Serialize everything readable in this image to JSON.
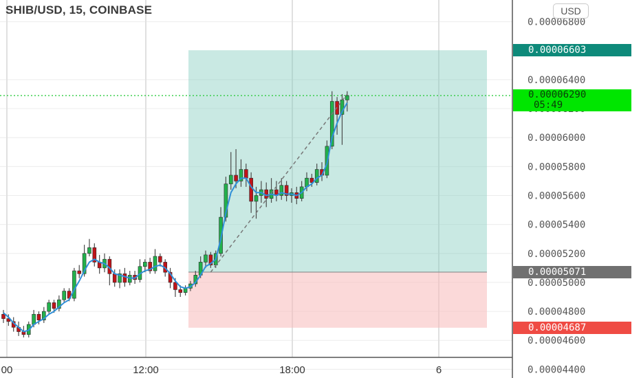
{
  "header": {
    "title": "SHIB/USD, 15, COINBASE",
    "currency_button": "USD"
  },
  "colors": {
    "profit_zone": "#7fcbbd",
    "loss_zone": "#f7b9b9",
    "candle_up": "#22b14c",
    "candle_down": "#c0141a",
    "ma_line": "#2f8fd8",
    "target_label": "#0e8a7a",
    "stop_label": "#ef4b44",
    "entry_label": "#707070",
    "last_price_label": "#00e600"
  },
  "price_labels": {
    "target": "0.00006603",
    "last": "0.00006290",
    "countdown": "05:49",
    "entry": "0.00005071",
    "stop": "0.00004687"
  },
  "chart_data": {
    "type": "candlestick",
    "title": "SHIB/USD, 15, COINBASE",
    "y_ticks": [
      "0.00006800",
      "0.00006400",
      "0.00006200",
      "0.00006000",
      "0.00005800",
      "0.00005600",
      "0.00005400",
      "0.00005200",
      "0.00005000",
      "0.00004800",
      "0.00004600",
      "0.00004400"
    ],
    "x_ticks": [
      "00",
      "12:00",
      "18:00",
      "6"
    ],
    "ylim": [
      4.34e-05,
      6.95e-05
    ],
    "position": {
      "target": 6.603e-05,
      "entry": 5.071e-05,
      "stop": 4.687e-05
    },
    "candles": [
      [
        4.78,
        4.75,
        4.81,
        4.72
      ],
      [
        4.75,
        4.73,
        4.78,
        4.7
      ],
      [
        4.73,
        4.69,
        4.76,
        4.66
      ],
      [
        4.69,
        4.66,
        4.73,
        4.63
      ],
      [
        4.66,
        4.64,
        4.7,
        4.62
      ],
      [
        4.64,
        4.71,
        4.73,
        4.62
      ],
      [
        4.71,
        4.78,
        4.81,
        4.69
      ],
      [
        4.78,
        4.74,
        4.8,
        4.71
      ],
      [
        4.74,
        4.8,
        4.83,
        4.72
      ],
      [
        4.8,
        4.86,
        4.88,
        4.78
      ],
      [
        4.86,
        4.82,
        4.88,
        4.79
      ],
      [
        4.82,
        4.88,
        4.91,
        4.8
      ],
      [
        4.88,
        4.94,
        4.96,
        4.86
      ],
      [
        4.94,
        4.89,
        4.96,
        4.87
      ],
      [
        4.89,
        5.08,
        5.1,
        4.87
      ],
      [
        5.08,
        5.06,
        5.12,
        5.03
      ],
      [
        5.06,
        5.2,
        5.26,
        5.04
      ],
      [
        5.2,
        5.24,
        5.3,
        5.18
      ],
      [
        5.24,
        5.14,
        5.27,
        5.11
      ],
      [
        5.14,
        5.1,
        5.19,
        5.06
      ],
      [
        5.1,
        5.16,
        5.2,
        5.07
      ],
      [
        5.16,
        5.06,
        5.18,
        4.98
      ],
      [
        5.06,
        5.0,
        5.09,
        4.97
      ],
      [
        5.0,
        5.06,
        5.09,
        4.96
      ],
      [
        5.06,
        5.0,
        5.1,
        4.97
      ],
      [
        5.0,
        5.05,
        5.08,
        4.98
      ],
      [
        5.05,
        5.02,
        5.08,
        4.99
      ],
      [
        5.02,
        5.11,
        5.16,
        5.0
      ],
      [
        5.11,
        5.14,
        5.16,
        5.07
      ],
      [
        5.14,
        5.08,
        5.17,
        5.06
      ],
      [
        5.08,
        5.18,
        5.23,
        5.06
      ],
      [
        5.18,
        5.14,
        5.2,
        5.11
      ],
      [
        5.14,
        5.07,
        5.16,
        5.04
      ],
      [
        5.07,
        5.0,
        5.1,
        4.96
      ],
      [
        5.0,
        4.95,
        5.03,
        4.9
      ],
      [
        4.95,
        4.93,
        4.98,
        4.9
      ],
      [
        4.93,
        4.96,
        4.98,
        4.91
      ],
      [
        4.96,
        4.99,
        5.01,
        4.94
      ],
      [
        4.99,
        5.05,
        5.08,
        4.97
      ],
      [
        5.05,
        5.14,
        5.18,
        5.03
      ],
      [
        5.14,
        5.19,
        5.22,
        5.1
      ],
      [
        5.19,
        5.12,
        5.21,
        5.1
      ],
      [
        5.12,
        5.2,
        5.22,
        5.1
      ],
      [
        5.2,
        5.45,
        5.52,
        5.18
      ],
      [
        5.45,
        5.68,
        5.73,
        5.42
      ],
      [
        5.68,
        5.74,
        5.9,
        5.64
      ],
      [
        5.74,
        5.7,
        5.92,
        5.65
      ],
      [
        5.7,
        5.78,
        5.85,
        5.66
      ],
      [
        5.78,
        5.72,
        5.82,
        5.66
      ],
      [
        5.72,
        5.56,
        5.76,
        5.48
      ],
      [
        5.56,
        5.6,
        5.66,
        5.44
      ],
      [
        5.6,
        5.64,
        5.7,
        5.55
      ],
      [
        5.64,
        5.58,
        5.69,
        5.52
      ],
      [
        5.58,
        5.64,
        5.72,
        5.55
      ],
      [
        5.64,
        5.6,
        5.7,
        5.56
      ],
      [
        5.6,
        5.67,
        5.72,
        5.57
      ],
      [
        5.67,
        5.6,
        5.7,
        5.56
      ],
      [
        5.6,
        5.62,
        5.65,
        5.55
      ],
      [
        5.62,
        5.58,
        5.66,
        5.54
      ],
      [
        5.58,
        5.66,
        5.7,
        5.56
      ],
      [
        5.66,
        5.72,
        5.76,
        5.63
      ],
      [
        5.72,
        5.69,
        5.75,
        5.66
      ],
      [
        5.69,
        5.78,
        5.82,
        5.67
      ],
      [
        5.78,
        5.74,
        5.83,
        5.7
      ],
      [
        5.74,
        5.94,
        5.98,
        5.72
      ],
      [
        5.94,
        6.25,
        6.32,
        5.92
      ],
      [
        6.25,
        6.16,
        6.28,
        6.02
      ],
      [
        6.16,
        6.26,
        6.3,
        5.95
      ],
      [
        6.26,
        6.29,
        6.32,
        6.18
      ]
    ],
    "moving_average": [
      4.79,
      4.76,
      4.72,
      4.69,
      4.66,
      4.67,
      4.71,
      4.73,
      4.75,
      4.78,
      4.8,
      4.83,
      4.86,
      4.88,
      4.95,
      5.01,
      5.08,
      5.14,
      5.16,
      5.14,
      5.13,
      5.1,
      5.06,
      5.05,
      5.04,
      5.03,
      5.03,
      5.06,
      5.08,
      5.09,
      5.11,
      5.12,
      5.1,
      5.06,
      5.01,
      4.97,
      4.96,
      4.97,
      5.0,
      5.05,
      5.11,
      5.13,
      5.16,
      5.3,
      5.48,
      5.62,
      5.68,
      5.72,
      5.72,
      5.66,
      5.62,
      5.62,
      5.6,
      5.61,
      5.6,
      5.62,
      5.61,
      5.61,
      5.6,
      5.62,
      5.66,
      5.68,
      5.72,
      5.74,
      5.82,
      6.0,
      6.1,
      6.18,
      6.24
    ]
  }
}
